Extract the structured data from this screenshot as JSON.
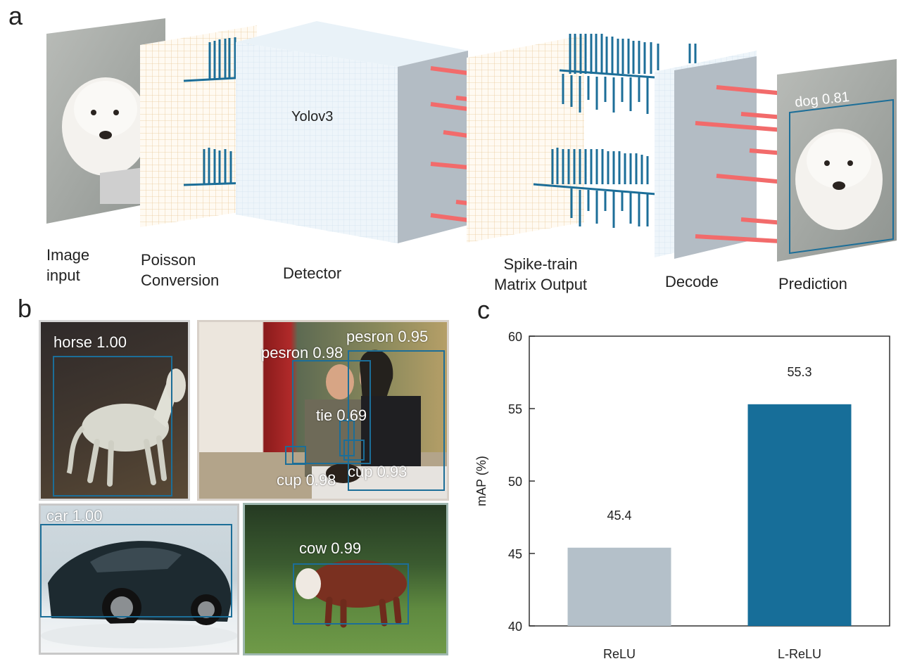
{
  "panel_a": {
    "letter": "a",
    "stages": {
      "image_input": "Image\ninput",
      "poisson": "Poisson\nConversion",
      "detector": "Detector",
      "spike_train": "Spike-train\nMatrix Output",
      "decode": "Decode",
      "prediction": "Prediction"
    },
    "detector_network": "Yolov3",
    "prediction_label": "dog 0.81",
    "colors": {
      "spike": "#1c6e98",
      "output_bar": "#f26b6b",
      "grid": "#c9d3dc"
    }
  },
  "panel_b": {
    "letter": "b",
    "images": [
      {
        "subject": "horse painting",
        "detections": [
          "horse 1.00"
        ]
      },
      {
        "subject": "couple painting",
        "detections": [
          "pesron 0.95",
          "pesron 0.98",
          "tie 0.69",
          "cup 0.98",
          "cup 0.93"
        ]
      },
      {
        "subject": "car",
        "detections": [
          "car 1.00"
        ]
      },
      {
        "subject": "cow in grass",
        "detections": [
          "cow 0.99"
        ]
      }
    ],
    "box_color": "#1c6e98"
  },
  "panel_c": {
    "letter": "c"
  },
  "chart_data": {
    "type": "bar",
    "categories": [
      "ReLU",
      "L-ReLU"
    ],
    "values": [
      45.4,
      55.3
    ],
    "data_labels": [
      "45.4",
      "55.3"
    ],
    "bar_colors": [
      "#b4c0c9",
      "#176e99"
    ],
    "ylabel": "mAP (%)",
    "xlabel": "",
    "ylim": [
      40,
      60
    ],
    "yticks": [
      40,
      45,
      50,
      55,
      60
    ],
    "grid": false
  }
}
